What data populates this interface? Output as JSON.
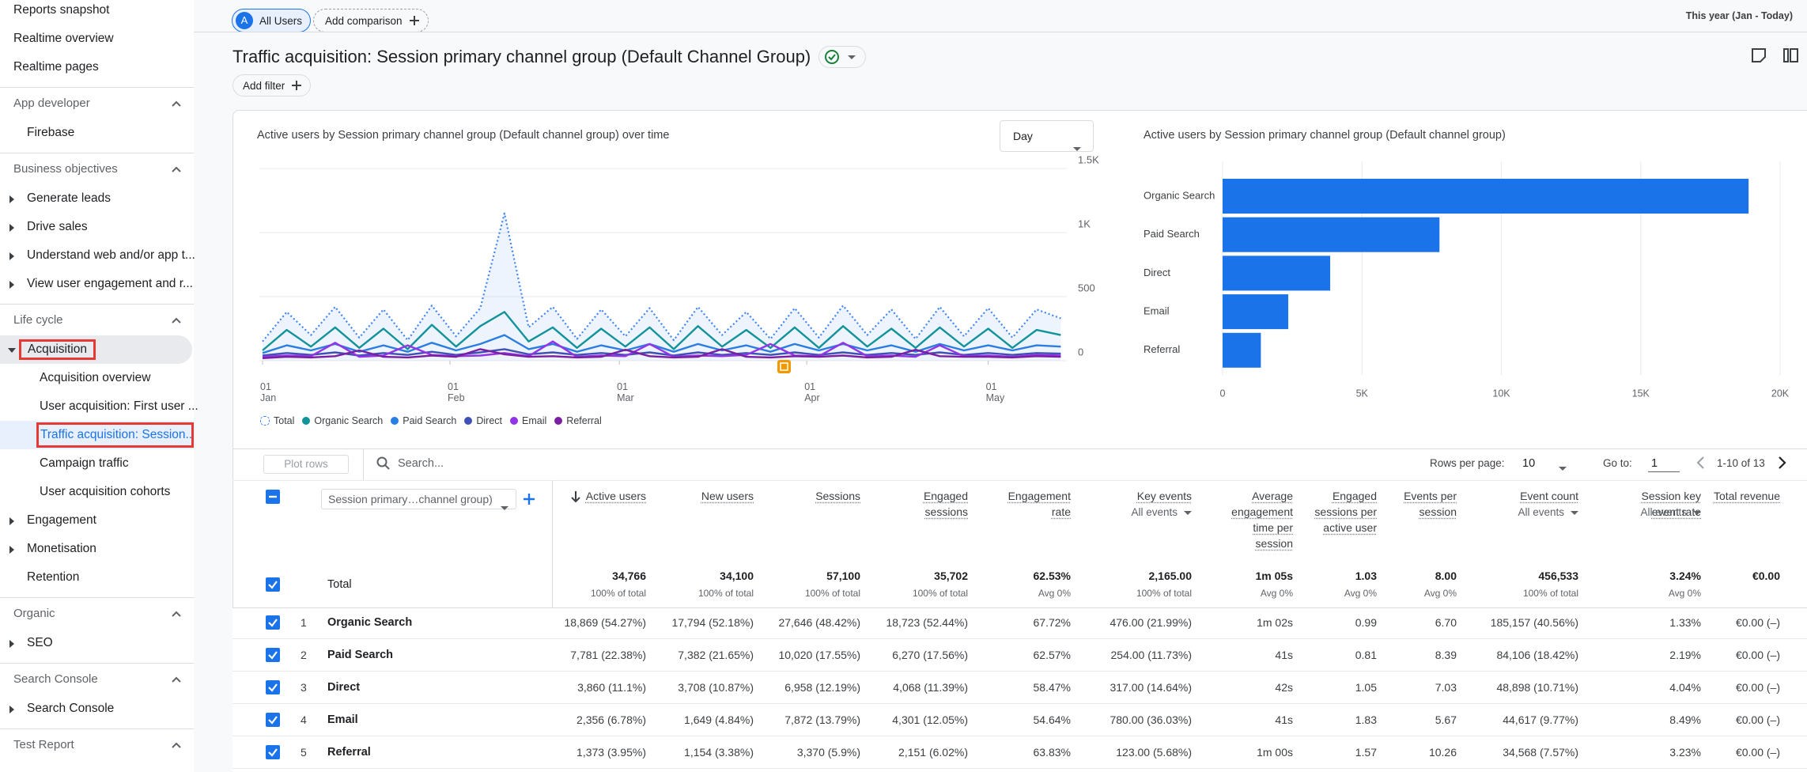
{
  "sidebar": {
    "top": [
      "Reports snapshot",
      "Realtime overview",
      "Realtime pages"
    ],
    "groups": [
      {
        "title": "App developer",
        "items": [
          {
            "label": "Firebase"
          }
        ]
      },
      {
        "title": "Business objectives",
        "items": [
          {
            "label": "Generate leads",
            "expanded": false
          },
          {
            "label": "Drive sales",
            "expanded": false
          },
          {
            "label": "Understand web and/or app t...",
            "expanded": false
          },
          {
            "label": "View user engagement and r...",
            "expanded": false
          }
        ]
      },
      {
        "title": "Life cycle",
        "items": [
          {
            "label": "Acquisition",
            "expanded": true,
            "selected": true,
            "children": [
              {
                "label": "Acquisition overview"
              },
              {
                "label": "User acquisition: First user ..."
              },
              {
                "label": "Traffic acquisition: Session...",
                "selected": true
              },
              {
                "label": "Campaign traffic"
              },
              {
                "label": "User acquisition cohorts"
              }
            ]
          },
          {
            "label": "Engagement",
            "expanded": false
          },
          {
            "label": "Monetisation",
            "expanded": false
          },
          {
            "label": "Retention"
          }
        ]
      },
      {
        "title": "Organic",
        "items": [
          {
            "label": "SEO",
            "expanded": false
          }
        ]
      },
      {
        "title": "Search Console",
        "items": [
          {
            "label": "Search Console",
            "expanded": false
          }
        ]
      },
      {
        "title": "Test Report",
        "items": []
      }
    ]
  },
  "header": {
    "segment_initial": "A",
    "segment": "All Users",
    "add_comparison": "Add comparison",
    "date_range": "This year (Jan - Today)",
    "title": "Traffic acquisition: Session primary channel group (Default Channel Group)",
    "add_filter": "Add filter"
  },
  "time_granularity": "Day",
  "chart_data": [
    {
      "type": "line",
      "title": "Active users by Session primary channel group (Default channel group) over time",
      "x": [
        0,
        4,
        8,
        12,
        16,
        20,
        24,
        28,
        32,
        36,
        40,
        44,
        48,
        52,
        56,
        60,
        64,
        68,
        72,
        76,
        80,
        84,
        88,
        92,
        96,
        100,
        104,
        108,
        112,
        116,
        120,
        124,
        128,
        132
      ],
      "xlim": [
        0,
        133
      ],
      "xticks": [
        {
          "value": 0,
          "label": "01 Jan"
        },
        {
          "value": 31,
          "label": "01 Feb"
        },
        {
          "value": 59,
          "label": "01 Mar"
        },
        {
          "value": 90,
          "label": "01 Apr"
        },
        {
          "value": 120,
          "label": "01 May"
        }
      ],
      "ylim": [
        0,
        1500
      ],
      "yticks": [
        0,
        500,
        {
          "value": 1000,
          "label": "1K"
        },
        {
          "value": 1500,
          "label": "1.5K"
        }
      ],
      "y_axis_side": "right",
      "grid": true,
      "series": [
        {
          "name": "Total",
          "color": "#4285f4",
          "line_style": "dotted",
          "area": true,
          "values": [
            150,
            380,
            200,
            420,
            180,
            400,
            160,
            430,
            190,
            410,
            1150,
            260,
            420,
            170,
            400,
            190,
            410,
            160,
            420,
            200,
            380,
            170,
            410,
            180,
            430,
            200,
            400,
            170,
            420,
            190,
            410,
            180,
            400,
            330
          ]
        },
        {
          "name": "Organic Search",
          "color": "#12939a",
          "line_style": "solid",
          "values": [
            80,
            240,
            110,
            260,
            100,
            250,
            90,
            280,
            110,
            270,
            380,
            150,
            260,
            100,
            250,
            110,
            260,
            90,
            270,
            110,
            240,
            100,
            260,
            100,
            270,
            110,
            250,
            100,
            260,
            110,
            250,
            100,
            240,
            200
          ]
        },
        {
          "name": "Paid Search",
          "color": "#2a7de1",
          "line_style": "solid",
          "values": [
            60,
            120,
            80,
            130,
            70,
            120,
            70,
            140,
            80,
            130,
            200,
            90,
            130,
            70,
            120,
            80,
            130,
            70,
            130,
            80,
            120,
            70,
            130,
            80,
            130,
            80,
            120,
            70,
            130,
            80,
            120,
            80,
            120,
            110
          ]
        },
        {
          "name": "Direct",
          "color": "#3f51b5",
          "line_style": "solid",
          "values": [
            40,
            60,
            45,
            65,
            40,
            60,
            45,
            70,
            45,
            65,
            90,
            50,
            65,
            45,
            60,
            45,
            65,
            40,
            65,
            45,
            60,
            45,
            65,
            45,
            65,
            45,
            60,
            45,
            65,
            45,
            60,
            45,
            60,
            55
          ]
        },
        {
          "name": "Email",
          "color": "#9334e6",
          "line_style": "solid",
          "values": [
            30,
            40,
            35,
            140,
            30,
            40,
            120,
            45,
            35,
            40,
            60,
            35,
            150,
            30,
            40,
            35,
            130,
            30,
            40,
            35,
            45,
            130,
            40,
            35,
            140,
            35,
            40,
            30,
            120,
            35,
            40,
            30,
            45,
            40
          ]
        },
        {
          "name": "Referral",
          "color": "#7b1fa2",
          "line_style": "solid",
          "values": [
            20,
            30,
            25,
            35,
            80,
            30,
            25,
            40,
            30,
            90,
            50,
            30,
            35,
            25,
            30,
            85,
            35,
            25,
            30,
            90,
            30,
            25,
            35,
            30,
            40,
            25,
            30,
            85,
            35,
            30,
            30,
            25,
            35,
            30
          ]
        }
      ]
    },
    {
      "type": "bar",
      "orientation": "horizontal",
      "title": "Active users by Session primary channel group (Default channel group)",
      "categories": [
        "Organic Search",
        "Paid Search",
        "Direct",
        "Email",
        "Referral"
      ],
      "values": [
        18869,
        7781,
        3860,
        2356,
        1373
      ],
      "color": "#1a73e8",
      "xlim": [
        0,
        20000
      ],
      "xticks": [
        0,
        {
          "value": 5000,
          "label": "5K"
        },
        {
          "value": 10000,
          "label": "10K"
        },
        {
          "value": 15000,
          "label": "15K"
        },
        {
          "value": 20000,
          "label": "20K"
        }
      ],
      "grid": true
    }
  ],
  "table": {
    "toolbar": {
      "plot_rows": "Plot rows",
      "search": "Search...",
      "rows_per_page_label": "Rows per page:",
      "rows_per_page": "10",
      "go_to_label": "Go to:",
      "go_to": "1",
      "range": "1-10 of 13"
    },
    "dimension": "Session primary…channel group)",
    "columns": [
      {
        "label": "Active users",
        "sorted": true
      },
      {
        "label": "New users"
      },
      {
        "label": "Sessions"
      },
      {
        "label": "Engaged sessions"
      },
      {
        "label": "Engagement rate"
      },
      {
        "label": "Key events",
        "filter": "All events"
      },
      {
        "label": "Average engagement time per session"
      },
      {
        "label": "Engaged sessions per active user"
      },
      {
        "label": "Events per session"
      },
      {
        "label": "Event count",
        "filter": "All events"
      },
      {
        "label": "Session key event rate",
        "filter": "All events"
      },
      {
        "label": "Total revenue"
      }
    ],
    "total": {
      "label": "Total",
      "values": [
        "34,766",
        "34,100",
        "57,100",
        "35,702",
        "62.53%",
        "2,165.00",
        "1m 05s",
        "1.03",
        "8.00",
        "456,533",
        "3.24%",
        "€0.00"
      ],
      "subs": [
        "100% of total",
        "100% of total",
        "100% of total",
        "100% of total",
        "Avg 0%",
        "100% of total",
        "Avg 0%",
        "Avg 0%",
        "Avg 0%",
        "100% of total",
        "Avg 0%"
      ]
    },
    "rows": [
      {
        "index": "1",
        "name": "Organic Search",
        "values": [
          "18,869 (54.27%)",
          "17,794 (52.18%)",
          "27,646 (48.42%)",
          "18,723 (52.44%)",
          "67.72%",
          "476.00 (21.99%)",
          "1m 02s",
          "0.99",
          "6.70",
          "185,157 (40.56%)",
          "1.33%",
          "€0.00 (–)"
        ]
      },
      {
        "index": "2",
        "name": "Paid Search",
        "values": [
          "7,781 (22.38%)",
          "7,382 (21.65%)",
          "10,020 (17.55%)",
          "6,270 (17.56%)",
          "62.57%",
          "254.00 (11.73%)",
          "41s",
          "0.81",
          "8.39",
          "84,106 (18.42%)",
          "2.19%",
          "€0.00 (–)"
        ]
      },
      {
        "index": "3",
        "name": "Direct",
        "values": [
          "3,860 (11.1%)",
          "3,708 (10.87%)",
          "6,958 (12.19%)",
          "4,068 (11.39%)",
          "58.47%",
          "317.00 (14.64%)",
          "42s",
          "1.05",
          "7.03",
          "48,898 (10.71%)",
          "4.04%",
          "€0.00 (–)"
        ]
      },
      {
        "index": "4",
        "name": "Email",
        "values": [
          "2,356 (6.78%)",
          "1,649 (4.84%)",
          "7,872 (13.79%)",
          "4,301 (12.05%)",
          "54.64%",
          "780.00 (36.03%)",
          "41s",
          "1.83",
          "5.67",
          "44,617 (9.77%)",
          "8.49%",
          "€0.00 (–)"
        ]
      },
      {
        "index": "5",
        "name": "Referral",
        "values": [
          "1,373 (3.95%)",
          "1,154 (3.38%)",
          "3,370 (5.9%)",
          "2,151 (6.02%)",
          "63.83%",
          "123.00 (5.68%)",
          "1m 00s",
          "1.57",
          "10.26",
          "34,568 (7.57%)",
          "3.23%",
          "€0.00 (–)"
        ]
      }
    ]
  }
}
